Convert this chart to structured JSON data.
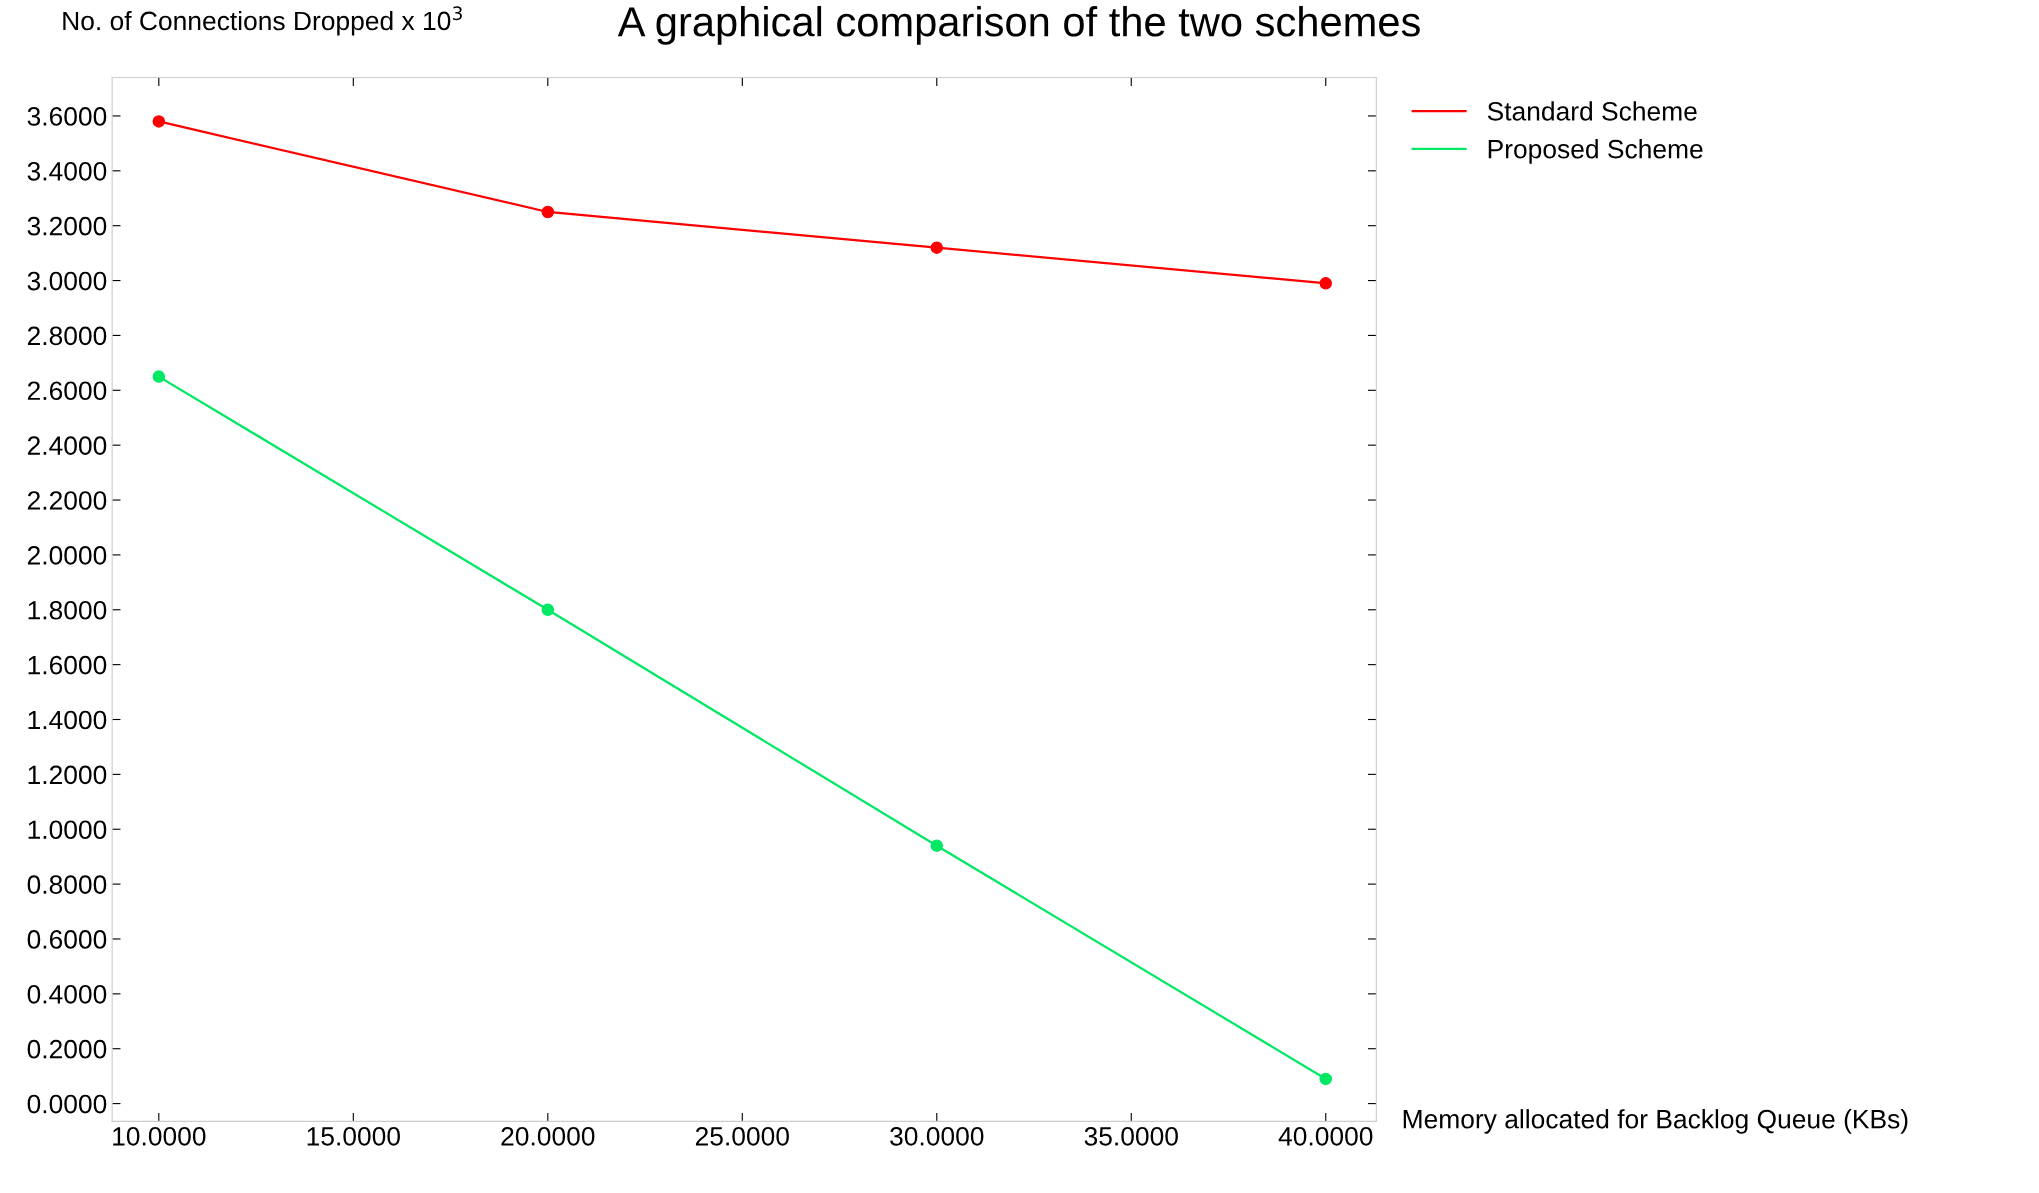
{
  "chart_data": {
    "type": "line",
    "title": "A graphical comparison of the two schemes",
    "xlabel": "Memory allocated for Backlog Queue (KBs)",
    "ylabel": "No. of Connections Dropped x 10$^{3}$",
    "x": [
      10,
      20,
      30,
      40
    ],
    "series": [
      {
        "name": "Standard Scheme",
        "color": "#ff0000",
        "values": [
          3.58,
          3.25,
          3.12,
          2.99
        ]
      },
      {
        "name": "Proposed Scheme",
        "color": "#00e864",
        "values": [
          2.65,
          1.8,
          0.94,
          0.09
        ]
      }
    ],
    "xlim": [
      8.8,
      41.3
    ],
    "ylim": [
      -0.065,
      3.74
    ],
    "xticks": [
      {
        "value": 10,
        "label": "10.0000"
      },
      {
        "value": 15,
        "label": "15.0000"
      },
      {
        "value": 20,
        "label": "20.0000"
      },
      {
        "value": 25,
        "label": "25.0000"
      },
      {
        "value": 30,
        "label": "30.0000"
      },
      {
        "value": 35,
        "label": "35.0000"
      },
      {
        "value": 40,
        "label": "40.0000"
      }
    ],
    "yticks": [
      {
        "value": 0,
        "label": "0.0000"
      },
      {
        "value": 0.2,
        "label": "0.2000"
      },
      {
        "value": 0.4,
        "label": "0.4000"
      },
      {
        "value": 0.6,
        "label": "0.6000"
      },
      {
        "value": 0.8,
        "label": "0.8000"
      },
      {
        "value": 1.0,
        "label": "1.0000"
      },
      {
        "value": 1.2,
        "label": "1.2000"
      },
      {
        "value": 1.4,
        "label": "1.4000"
      },
      {
        "value": 1.6,
        "label": "1.6000"
      },
      {
        "value": 1.8,
        "label": "1.8000"
      },
      {
        "value": 2.0,
        "label": "2.0000"
      },
      {
        "value": 2.2,
        "label": "2.2000"
      },
      {
        "value": 2.4,
        "label": "2.4000"
      },
      {
        "value": 2.6,
        "label": "2.6000"
      },
      {
        "value": 2.8,
        "label": "2.8000"
      },
      {
        "value": 3.0,
        "label": "3.0000"
      },
      {
        "value": 3.2,
        "label": "3.2000"
      },
      {
        "value": 3.4,
        "label": "3.4000"
      },
      {
        "value": 3.6,
        "label": "3.6000"
      }
    ],
    "grid": false,
    "legend": "top right",
    "marker": "circle",
    "line_style": "solid"
  }
}
